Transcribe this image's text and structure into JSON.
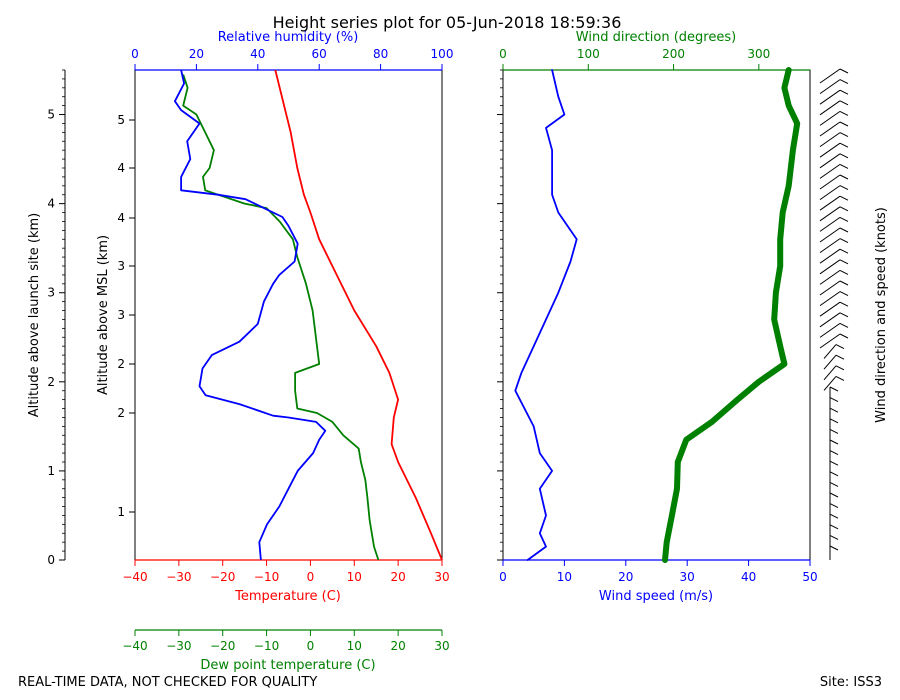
{
  "title": "Height series plot for 05-Jun-2018 18:59:36",
  "footer": {
    "left": "REAL-TIME DATA, NOT CHECKED FOR QUALITY",
    "right": "Site: ISS3"
  },
  "colors": {
    "red": "#ff0000",
    "green": "#008000",
    "blue": "#0000ff",
    "black": "#000000"
  },
  "chart_data": [
    {
      "type": "line",
      "name": "thermo-panel",
      "ylabel_outer": "Altitude above launch site (km)",
      "ylabel_inner": "Altitude above MSL (km)",
      "outer_ticks": [
        "0",
        "1",
        "2",
        "3",
        "4",
        "5"
      ],
      "inner_ticks": [
        "1",
        "2",
        "3",
        "3",
        "4",
        "4",
        "5"
      ],
      "y_range_km": [
        0,
        5.5
      ],
      "temperature_axis": {
        "label": "Temperature (C)",
        "range": [
          -40,
          30
        ],
        "ticks": [
          "−40",
          "−30",
          "−20",
          "−10",
          "0",
          "10",
          "20",
          "30"
        ]
      },
      "dewpoint_axis": {
        "label": "Dew point temperature (C)",
        "range": [
          -40,
          30
        ],
        "ticks": [
          "−40",
          "−30",
          "−20",
          "−10",
          "0",
          "10",
          "20",
          "30"
        ]
      },
      "rh_axis": {
        "label": "Relative humidity (%)",
        "range": [
          0,
          100
        ],
        "ticks": [
          "0",
          "20",
          "40",
          "60",
          "80",
          "100"
        ]
      },
      "series": [
        {
          "name": "Temperature",
          "axis": "temperature",
          "color": "#ff0000",
          "points": [
            [
              30,
              0
            ],
            [
              27.5,
              0.3
            ],
            [
              24,
              0.7
            ],
            [
              20,
              1.1
            ],
            [
              18.5,
              1.3
            ],
            [
              19,
              1.6
            ],
            [
              20,
              1.8
            ],
            [
              18,
              2.1
            ],
            [
              15,
              2.4
            ],
            [
              10,
              2.8
            ],
            [
              6,
              3.2
            ],
            [
              2,
              3.6
            ],
            [
              0,
              3.9
            ],
            [
              -1.5,
              4.1
            ],
            [
              -3,
              4.4
            ],
            [
              -4.5,
              4.8
            ],
            [
              -6,
              5.1
            ],
            [
              -7.5,
              5.4
            ],
            [
              -8,
              5.5
            ]
          ]
        },
        {
          "name": "Dew point",
          "axis": "dewpoint",
          "color": "#008000",
          "points": [
            [
              15.5,
              0
            ],
            [
              14.5,
              0.15
            ],
            [
              13.5,
              0.45
            ],
            [
              13,
              0.7
            ],
            [
              12.5,
              0.9
            ],
            [
              11.5,
              1.1
            ],
            [
              11,
              1.25
            ],
            [
              7.5,
              1.4
            ],
            [
              5,
              1.55
            ],
            [
              1.5,
              1.65
            ],
            [
              -3,
              1.7
            ],
            [
              -3.5,
              1.9
            ],
            [
              -3.5,
              2.1
            ],
            [
              2,
              2.2
            ],
            [
              1.5,
              2.4
            ],
            [
              1,
              2.6
            ],
            [
              0.5,
              2.8
            ],
            [
              -1,
              3.1
            ],
            [
              -3,
              3.4
            ],
            [
              -4,
              3.6
            ],
            [
              -7,
              3.8
            ],
            [
              -10,
              3.95
            ],
            [
              -15,
              4.0
            ],
            [
              -24,
              4.15
            ],
            [
              -24.5,
              4.3
            ],
            [
              -23,
              4.4
            ],
            [
              -22,
              4.6
            ],
            [
              -24,
              4.8
            ],
            [
              -26,
              5.0
            ],
            [
              -29,
              5.1
            ],
            [
              -28,
              5.3
            ],
            [
              -29,
              5.45
            ]
          ]
        },
        {
          "name": "Relative humidity",
          "axis": "rh",
          "color": "#0000ff",
          "points": [
            [
              41,
              0
            ],
            [
              40.5,
              0.2
            ],
            [
              43,
              0.4
            ],
            [
              47,
              0.6
            ],
            [
              50,
              0.8
            ],
            [
              53,
              1.0
            ],
            [
              58,
              1.2
            ],
            [
              60,
              1.35
            ],
            [
              62,
              1.45
            ],
            [
              59,
              1.55
            ],
            [
              50,
              1.6
            ],
            [
              45,
              1.62
            ],
            [
              34,
              1.75
            ],
            [
              23,
              1.85
            ],
            [
              21,
              1.95
            ],
            [
              22,
              2.15
            ],
            [
              25,
              2.3
            ],
            [
              34,
              2.45
            ],
            [
              40,
              2.65
            ],
            [
              42,
              2.9
            ],
            [
              45,
              3.1
            ],
            [
              47,
              3.2
            ],
            [
              52,
              3.35
            ],
            [
              53,
              3.55
            ],
            [
              50,
              3.75
            ],
            [
              48,
              3.85
            ],
            [
              42,
              3.95
            ],
            [
              36,
              4.05
            ],
            [
              27,
              4.1
            ],
            [
              15,
              4.15
            ],
            [
              15,
              4.3
            ],
            [
              18,
              4.5
            ],
            [
              17,
              4.7
            ],
            [
              21,
              4.9
            ],
            [
              15,
              5.05
            ],
            [
              13,
              5.15
            ],
            [
              16,
              5.35
            ],
            [
              15,
              5.5
            ]
          ]
        }
      ]
    },
    {
      "type": "line",
      "name": "wind-panel",
      "wind_speed_axis": {
        "label": "Wind speed (m/s)",
        "range": [
          0,
          50
        ],
        "ticks": [
          "0",
          "10",
          "20",
          "30",
          "40",
          "50"
        ]
      },
      "wind_direction_axis": {
        "label": "Wind direction (degrees)",
        "range": [
          0,
          360
        ],
        "ticks": [
          "0",
          "100",
          "200",
          "300"
        ]
      },
      "series": [
        {
          "name": "Wind speed",
          "axis": "speed",
          "color": "#0000ff",
          "points": [
            [
              4,
              0
            ],
            [
              7,
              0.15
            ],
            [
              6,
              0.3
            ],
            [
              7,
              0.5
            ],
            [
              6,
              0.8
            ],
            [
              8,
              1.0
            ],
            [
              6,
              1.2
            ],
            [
              5,
              1.5
            ],
            [
              2,
              1.9
            ],
            [
              3,
              2.1
            ],
            [
              5,
              2.4
            ],
            [
              7,
              2.7
            ],
            [
              9,
              3.0
            ],
            [
              11,
              3.35
            ],
            [
              12,
              3.6
            ],
            [
              9,
              3.9
            ],
            [
              8,
              4.1
            ],
            [
              8,
              4.3
            ],
            [
              8,
              4.6
            ],
            [
              7,
              4.85
            ],
            [
              10,
              5.0
            ],
            [
              9,
              5.2
            ],
            [
              8,
              5.5
            ]
          ]
        },
        {
          "name": "Wind direction",
          "axis": "direction",
          "color": "#008000",
          "points": [
            [
              190,
              0
            ],
            [
              192,
              0.2
            ],
            [
              198,
              0.5
            ],
            [
              204,
              0.8
            ],
            [
              205,
              1.1
            ],
            [
              215,
              1.35
            ],
            [
              245,
              1.55
            ],
            [
              275,
              1.8
            ],
            [
              300,
              2.0
            ],
            [
              330,
              2.2
            ],
            [
              325,
              2.4
            ],
            [
              318,
              2.7
            ],
            [
              320,
              3.0
            ],
            [
              325,
              3.3
            ],
            [
              325,
              3.6
            ],
            [
              328,
              3.9
            ],
            [
              335,
              4.2
            ],
            [
              340,
              4.6
            ],
            [
              345,
              4.9
            ],
            [
              335,
              5.1
            ],
            [
              330,
              5.3
            ],
            [
              335,
              5.5
            ]
          ]
        }
      ]
    },
    {
      "type": "barbs",
      "name": "barb-column",
      "ylabel": "Wind direction and speed (knots)"
    }
  ]
}
